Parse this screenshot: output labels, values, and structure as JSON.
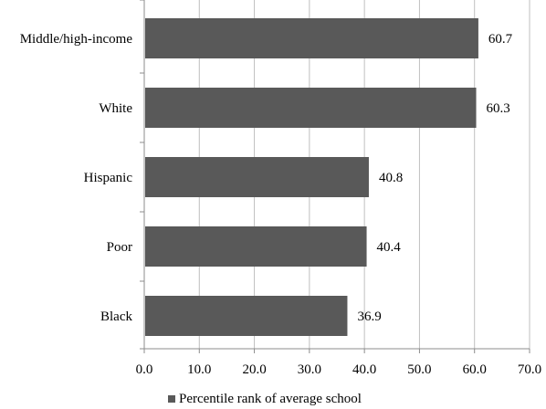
{
  "chart_data": {
    "type": "bar",
    "orientation": "horizontal",
    "categories": [
      "Middle/high-income",
      "White",
      "Hispanic",
      "Poor",
      "Black"
    ],
    "series": [
      {
        "name": "Percentile rank of average school",
        "values": [
          60.7,
          60.3,
          40.8,
          40.4,
          36.9
        ],
        "color": "#595959"
      }
    ],
    "xlim": [
      0,
      70
    ],
    "xticks": [
      "0.0",
      "10.0",
      "20.0",
      "30.0",
      "40.0",
      "50.0",
      "60.0",
      "70.0"
    ],
    "grid": true,
    "legend_position": "bottom",
    "data_labels": [
      "60.7",
      "60.3",
      "40.8",
      "40.4",
      "36.9"
    ]
  }
}
